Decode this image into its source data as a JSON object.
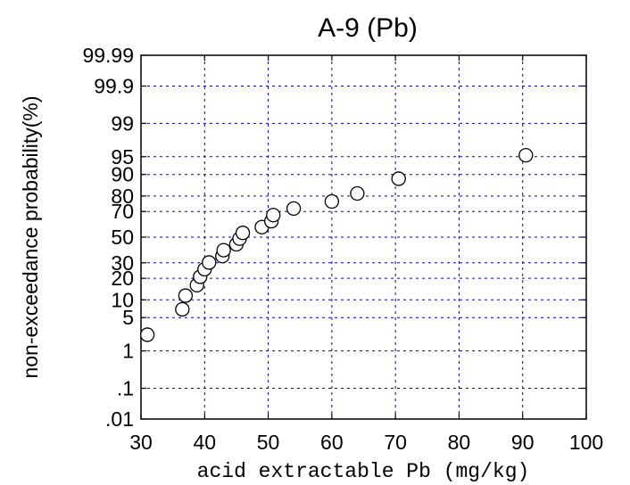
{
  "chart_data": {
    "type": "scatter",
    "title": "A-9 (Pb)",
    "xlabel": "acid extractable Pb (mg/kg)",
    "ylabel": "non-exceedance probability(%)",
    "xlim": [
      30,
      100
    ],
    "x_ticks": [
      30,
      40,
      50,
      60,
      70,
      80,
      90,
      100
    ],
    "x_tick_labels": [
      "30",
      "40",
      "50",
      "60",
      "70",
      "80",
      "90",
      "100"
    ],
    "y_scale": "normal-probability",
    "y_ticks": [
      0.01,
      0.1,
      1,
      5,
      10,
      20,
      30,
      50,
      70,
      80,
      90,
      95,
      99,
      99.9,
      99.99
    ],
    "y_tick_labels": [
      ".01",
      ".1",
      "1",
      "5",
      "10",
      "20",
      "30",
      "50",
      "70",
      "80",
      "90",
      "95",
      "99",
      "99.9",
      "99.99"
    ],
    "grid": true,
    "series": [
      {
        "marker": "open-circle",
        "points": [
          [
            31.0,
            2.3
          ],
          [
            36.5,
            7.0
          ],
          [
            37.0,
            11.6
          ],
          [
            38.8,
            16.3
          ],
          [
            39.3,
            20.9
          ],
          [
            40.0,
            25.6
          ],
          [
            40.7,
            30.2
          ],
          [
            42.8,
            34.9
          ],
          [
            43.0,
            39.5
          ],
          [
            45.0,
            44.2
          ],
          [
            45.5,
            48.8
          ],
          [
            46.0,
            53.5
          ],
          [
            49.0,
            58.1
          ],
          [
            50.5,
            62.8
          ],
          [
            50.8,
            67.4
          ],
          [
            54.0,
            72.1
          ],
          [
            60.0,
            76.7
          ],
          [
            64.0,
            81.4
          ],
          [
            70.5,
            88.4
          ],
          [
            90.5,
            95.3
          ]
        ]
      }
    ]
  }
}
